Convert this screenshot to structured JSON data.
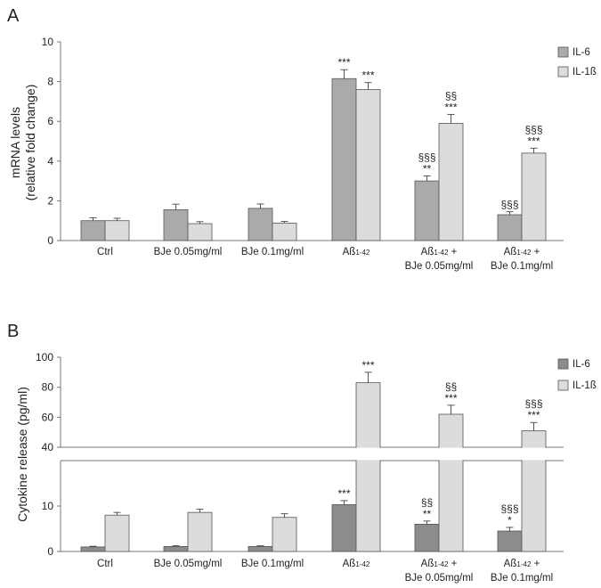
{
  "chart_data": [
    {
      "panel": "A",
      "type": "bar",
      "ylabel": "mRNA levels\n(relative fold change)",
      "ylim": [
        0,
        10
      ],
      "yticks": [
        0,
        2,
        4,
        6,
        8,
        10
      ],
      "categories": [
        [
          "Ctrl"
        ],
        [
          "BJe 0.05mg/ml"
        ],
        [
          "BJe 0.1mg/ml"
        ],
        [
          "Aß1-42"
        ],
        [
          "Aß1-42 +",
          "BJe 0.05mg/ml"
        ],
        [
          "Aß1-42 +",
          "BJe 0.1mg/ml"
        ]
      ],
      "series": [
        {
          "name": "IL-6",
          "color": "#aaaaaa",
          "values": [
            1.0,
            1.55,
            1.62,
            8.15,
            3.0,
            1.3
          ],
          "errors": [
            0.15,
            0.28,
            0.22,
            0.45,
            0.25,
            0.15
          ],
          "annotations": [
            [],
            [],
            [],
            [
              "***"
            ],
            [
              "§§§",
              "**"
            ],
            [
              "§§§"
            ]
          ]
        },
        {
          "name": "IL-1ß",
          "color": "#dcdcdc",
          "values": [
            1.0,
            0.85,
            0.88,
            7.6,
            5.9,
            4.4
          ],
          "errors": [
            0.12,
            0.1,
            0.08,
            0.35,
            0.45,
            0.25
          ],
          "annotations": [
            [],
            [],
            [],
            [
              "***"
            ],
            [
              "§§",
              "***"
            ],
            [
              "§§§",
              "***"
            ]
          ]
        }
      ]
    },
    {
      "panel": "B",
      "type": "bar",
      "ylabel": "Cytokine release (pg/ml)",
      "axis_break": true,
      "lower_ylim": [
        0,
        20
      ],
      "lower_yticks": [
        0,
        10
      ],
      "upper_ylim": [
        40,
        100
      ],
      "upper_yticks": [
        40,
        60,
        80,
        100
      ],
      "categories": [
        [
          "Ctrl"
        ],
        [
          "BJe 0.05mg/ml"
        ],
        [
          "BJe 0.1mg/ml"
        ],
        [
          "Aß1-42"
        ],
        [
          "Aß1-42 +",
          "BJe 0.05mg/ml"
        ],
        [
          "Aß1-42 +",
          "BJe 0.1mg/ml"
        ]
      ],
      "series": [
        {
          "name": "IL-6",
          "color": "#8c8c8c",
          "values": [
            1.0,
            1.1,
            1.1,
            10.3,
            6.0,
            4.5
          ],
          "errors": [
            0.15,
            0.15,
            0.15,
            0.9,
            0.7,
            0.8
          ],
          "annotations": [
            [],
            [],
            [],
            [
              "***"
            ],
            [
              "§§",
              "**"
            ],
            [
              "§§§",
              "*"
            ]
          ]
        },
        {
          "name": "IL-1ß",
          "color": "#dcdcdc",
          "values": [
            8.0,
            8.6,
            7.5,
            83.0,
            62.0,
            51.0
          ],
          "errors": [
            0.6,
            0.7,
            0.8,
            7.0,
            6.0,
            5.5
          ],
          "annotations": [
            [],
            [],
            [],
            [
              "***"
            ],
            [
              "§§",
              "***"
            ],
            [
              "§§§",
              "***"
            ]
          ]
        }
      ]
    }
  ]
}
